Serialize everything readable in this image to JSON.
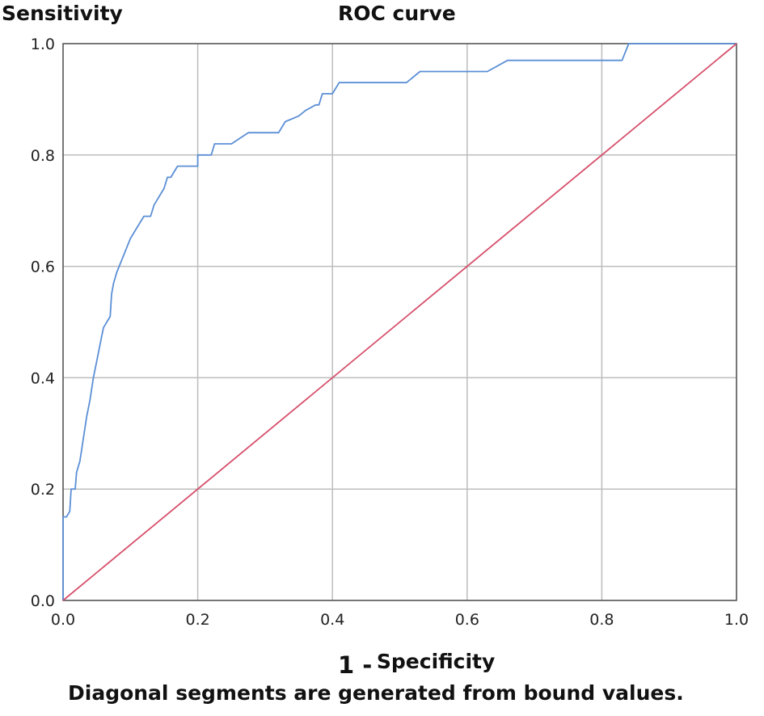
{
  "chart_data": {
    "type": "line",
    "title": "ROC curve",
    "ylabel": "Sensitivity",
    "xlabel_prefix": "1 -",
    "xlabel_main": "Specificity",
    "footnote": "Diagonal segments are generated from bound values.",
    "xlim": [
      0.0,
      1.0
    ],
    "ylim": [
      0.0,
      1.0
    ],
    "x_ticks": [
      "0.0",
      "0.2",
      "0.4",
      "0.6",
      "0.8",
      "1.0"
    ],
    "y_ticks": [
      "0.0",
      "0.2",
      "0.4",
      "0.6",
      "0.8",
      "1.0"
    ],
    "grid": true,
    "series": [
      {
        "color": "#5b8fd6",
        "points": [
          [
            0.0,
            0.0
          ],
          [
            0.0,
            0.15
          ],
          [
            0.005,
            0.15
          ],
          [
            0.01,
            0.16
          ],
          [
            0.012,
            0.2
          ],
          [
            0.018,
            0.2
          ],
          [
            0.02,
            0.23
          ],
          [
            0.025,
            0.25
          ],
          [
            0.03,
            0.29
          ],
          [
            0.035,
            0.33
          ],
          [
            0.04,
            0.36
          ],
          [
            0.045,
            0.4
          ],
          [
            0.05,
            0.43
          ],
          [
            0.055,
            0.46
          ],
          [
            0.06,
            0.49
          ],
          [
            0.065,
            0.5
          ],
          [
            0.07,
            0.51
          ],
          [
            0.072,
            0.55
          ],
          [
            0.075,
            0.57
          ],
          [
            0.08,
            0.59
          ],
          [
            0.09,
            0.62
          ],
          [
            0.1,
            0.65
          ],
          [
            0.11,
            0.67
          ],
          [
            0.12,
            0.69
          ],
          [
            0.13,
            0.69
          ],
          [
            0.135,
            0.71
          ],
          [
            0.14,
            0.72
          ],
          [
            0.15,
            0.74
          ],
          [
            0.155,
            0.76
          ],
          [
            0.16,
            0.76
          ],
          [
            0.17,
            0.78
          ],
          [
            0.2,
            0.78
          ],
          [
            0.2,
            0.8
          ],
          [
            0.22,
            0.8
          ],
          [
            0.225,
            0.82
          ],
          [
            0.25,
            0.82
          ],
          [
            0.275,
            0.84
          ],
          [
            0.32,
            0.84
          ],
          [
            0.33,
            0.86
          ],
          [
            0.35,
            0.87
          ],
          [
            0.36,
            0.88
          ],
          [
            0.375,
            0.89
          ],
          [
            0.38,
            0.89
          ],
          [
            0.385,
            0.91
          ],
          [
            0.4,
            0.91
          ],
          [
            0.41,
            0.93
          ],
          [
            0.51,
            0.93
          ],
          [
            0.53,
            0.95
          ],
          [
            0.63,
            0.95
          ],
          [
            0.66,
            0.97
          ],
          [
            0.83,
            0.97
          ],
          [
            0.84,
            1.0
          ],
          [
            1.0,
            1.0
          ]
        ]
      },
      {
        "color": "#d6506b",
        "points": [
          [
            0.0,
            0.0
          ],
          [
            1.0,
            1.0
          ]
        ]
      }
    ]
  }
}
